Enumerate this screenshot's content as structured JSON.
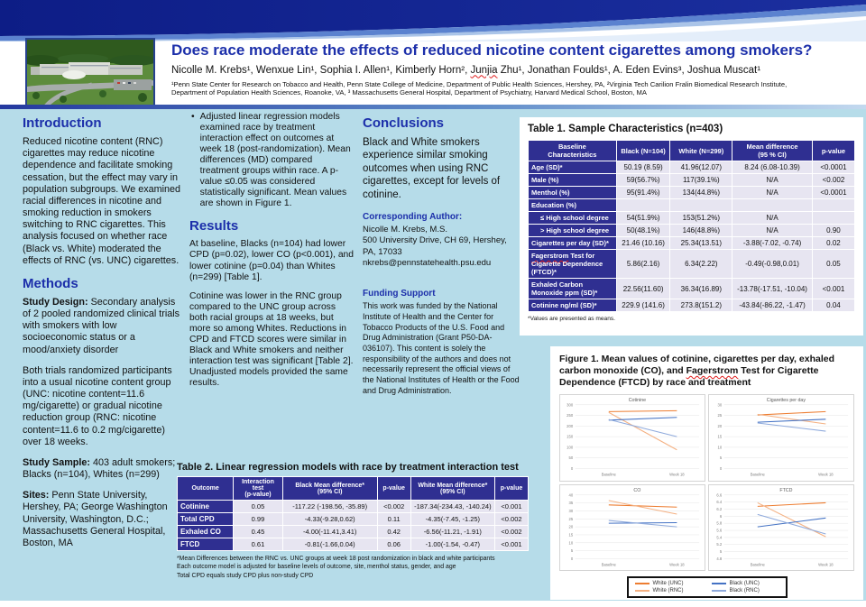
{
  "header": {
    "title": "Does race moderate the effects of reduced nicotine content cigarettes among smokers?",
    "authors_pre": "Nicolle M. Krebs¹, Wenxue Lin¹, Sophia I. Allen¹, Kimberly Horn², ",
    "authors_sq": "Junjia",
    "authors_post": " Zhu¹, Jonathan Foulds¹, A. Eden Evins³, Joshua Muscat¹",
    "affiliation_line1": "¹Penn State Center for Research on Tobacco and Health, Penn State College of Medicine, Department of Public Health Sciences, Hershey, PA, ²Virginia Tech Carilion Fralin Biomedical Research Institute,",
    "affiliation_line2": "Department of Population Health Sciences, Roanoke, VA, ³ Massachusetts General Hospital, Department of Psychiatry, Harvard Medical School, Boston, MA"
  },
  "intro": {
    "heading": "Introduction",
    "body": "Reduced nicotine content (RNC) cigarettes may reduce nicotine dependence and facilitate smoking cessation, but the effect may vary in population subgroups.  We examined racial differences in nicotine and smoking reduction in smokers switching to RNC cigarettes. This analysis focused on whether race (Black vs. White) moderated the effects of RNC (vs. UNC) cigarettes."
  },
  "methods": {
    "heading": "Methods",
    "design_label": "Study Design:",
    "design_text": " Secondary analysis of 2 pooled randomized clinical trials with smokers with low socioeconomic status or a mood/anxiety disorder",
    "randomization_text": "Both trials randomized participants into a usual nicotine content group (UNC: nicotine content=11.6 mg/cigarette) or gradual nicotine reduction group (RNC: nicotine content=11.6 to 0.2 mg/cigarette) over 18 weeks.",
    "sample_label": "Study Sample:",
    "sample_text": " 403 adult smokers; Blacks (n=104), Whites (n=299)",
    "sites_label": "Sites:",
    "sites_text": "  Penn State University, Hershey, PA; George Washington University, Washington, D.C.; Massachusetts General Hospital, Boston, MA"
  },
  "analysis": {
    "bullet_glyph": "•",
    "bullet": "Adjusted linear regression models examined race by treatment interaction effect on outcomes at week 18 (post-randomization). Mean differences (MD) compared treatment groups within race. A p-value ≤0.05 was considered statistically significant.  Mean values are shown in Figure 1."
  },
  "results": {
    "heading": "Results",
    "p1": "At baseline, Blacks (n=104) had lower CPD (p=0.02), lower CO (p<0.001), and lower cotinine (p=0.04) than Whites (n=299) [Table 1].",
    "p2": "Cotinine was lower in the RNC group compared to the UNC group across both racial groups at 18 weeks, but more so among Whites. Reductions in CPD and FTCD scores were similar in Black and White smokers and neither interaction test was significant [Table 2].  Unadjusted models provided the same results."
  },
  "conclusions": {
    "heading": "Conclusions",
    "body": "Black and White smokers experience similar smoking outcomes when using RNC cigarettes, except for levels of cotinine."
  },
  "corresponding": {
    "heading": "Corresponding Author:",
    "lines": [
      "Nicolle M. Krebs, M.S.",
      "500 University Drive, CH 69, Hershey, PA, 17033",
      "nkrebs@pennstatehealth.psu.edu"
    ]
  },
  "funding": {
    "heading": "Funding Support",
    "body": "This work was funded by the National Institute of Health and the Center for Tobacco Products of the U.S. Food and Drug Administration (Grant P50-DA-036107).  This content is solely the responsibility of the authors and does not necessarily represent the official views of the National Institutes of Health or the Food and Drug Administration."
  },
  "table1": {
    "title": "Table 1.  Sample Characteristics (n=403)",
    "headers": [
      "Baseline\nCharacteristics",
      "Black (N=104)",
      "White (N=299)",
      "Mean difference\n(95 % CI)",
      "p-value"
    ],
    "col_widths": [
      "27%",
      "16.5%",
      "19%",
      "24.5%",
      "13%"
    ],
    "rows": [
      {
        "label": "Age (SD)*",
        "cells": [
          "50.19 (8.59)",
          "41.96(12.07)",
          "8.24 (6.08-10.39)",
          "<0.0001"
        ]
      },
      {
        "label": "Male (%)",
        "cells": [
          "59(56.7%)",
          "117(39.1%)",
          "N/A",
          "<0.002"
        ]
      },
      {
        "label": "Menthol (%)",
        "cells": [
          "95(91.4%)",
          "134(44.8%)",
          "N/A",
          "<0.0001"
        ]
      },
      {
        "label": "Education (%)",
        "cells": [
          "",
          "",
          "",
          ""
        ]
      },
      {
        "label": "≤ High school degree",
        "indent": true,
        "cells": [
          "54(51.9%)",
          "153(51.2%)",
          "N/A",
          ""
        ]
      },
      {
        "label": "> High school degree",
        "indent": true,
        "cells": [
          "50(48.1%)",
          "146(48.8%)",
          "N/A",
          "0.90"
        ]
      },
      {
        "label": "Cigarettes per day (SD)*",
        "cells": [
          "21.46 (10.16)",
          "25.34(13.51)",
          "-3.88(-7.02, -0.74)",
          "0.02"
        ]
      },
      {
        "label": "Fagerstrom Test for Cigarette Dependence (FTCD)*",
        "cells": [
          "5.86(2.16)",
          "6.34(2.22)",
          "-0.49(-0.98,0.01)",
          "0.05"
        ]
      },
      {
        "label": "Exhaled Carbon Monoxide ppm (SD)*",
        "cells": [
          "22.56(11.60)",
          "36.34(16.89)",
          "-13.78(-17.51, -10.04)",
          "<0.001"
        ]
      },
      {
        "label": "Cotinine ng/ml (SD)*",
        "cells": [
          "229.9 (141.6)",
          "273.8(151.2)",
          "-43.84(-86.22, -1.47)",
          "0.04"
        ]
      }
    ],
    "footnote": "*Values are presented as means."
  },
  "table2": {
    "title": "Table 2.  Linear regression models with race by treatment interaction test",
    "headers": [
      "Outcome",
      "Interaction\ntest\n(p-value)",
      "Black Mean difference*\n(95% CI)",
      "p-value",
      "White Mean difference*\n(95% CI)",
      "p-value"
    ],
    "col_widths": [
      "16%",
      "14%",
      "27%",
      "9.5%",
      "24%",
      "9.5%"
    ],
    "rows": [
      {
        "label": "Cotinine",
        "cells": [
          "0.05",
          "-117.22 (-198.56, -35.89)",
          "<0.002",
          "-187.34(-234.43, -140.24)",
          "<0.001"
        ]
      },
      {
        "label": "Total CPD",
        "cells": [
          "0.99",
          "-4.33(-9.28,0.62)",
          "0.11",
          "-4.35(-7.45, -1.25)",
          "<0.002"
        ]
      },
      {
        "label": "Exhaled CO",
        "cells": [
          "0.45",
          "-4.00(-11.41,3.41)",
          "0.42",
          "-6.56(-11.21, -1.91)",
          "<0.002"
        ]
      },
      {
        "label": "FTCD",
        "cells": [
          "0.61",
          "-0.81(-1.66,0.04)",
          "0.06",
          "-1.00(-1.54, -0.47)",
          "<0.001"
        ]
      }
    ],
    "footnotes": [
      "*Mean Differences between the RNC vs. UNC groups at week 18 post randomization in black and white participants",
      "Each outcome model is adjusted for baseline levels of outcome, site, menthol status, gender, and age",
      "Total CPD equals study CPD plus non-study CPD"
    ]
  },
  "figure1": {
    "caption_pre": "Figure 1.  Mean values of cotinine, cigarettes per day, exhaled carbon monoxide (CO), and ",
    "caption_sq": "Fagerstrom",
    "caption_post": " Test for Cigarette Dependence (FTCD) by race and treatment",
    "legend": [
      {
        "label": "White (UNC)",
        "color": "#ed7d31"
      },
      {
        "label": "Black (UNC)",
        "color": "#4472c4"
      },
      {
        "label": "White (RNC)",
        "color": "#f4b183"
      },
      {
        "label": "Black (RNC)",
        "color": "#8faadc"
      }
    ]
  },
  "chart_data": [
    {
      "type": "line",
      "title": "Cotinine",
      "ymin": 0,
      "ymax": 300,
      "yticks": [
        "0",
        "50",
        "100",
        "150",
        "200",
        "250",
        "300"
      ],
      "x_labels": [
        "Baseline",
        "Week 18"
      ],
      "series": [
        {
          "name": "White (UNC)",
          "color": "#ed7d31",
          "values": [
            268,
            272
          ]
        },
        {
          "name": "White (RNC)",
          "color": "#f4b183",
          "values": [
            264,
            88
          ]
        },
        {
          "name": "Black (UNC)",
          "color": "#4472c4",
          "values": [
            228,
            241
          ]
        },
        {
          "name": "Black (RNC)",
          "color": "#8faadc",
          "values": [
            231,
            150
          ]
        }
      ]
    },
    {
      "type": "line",
      "title": "Cigarettes per day",
      "ymin": 0,
      "ymax": 30,
      "yticks": [
        "0",
        "5",
        "10",
        "15",
        "20",
        "25",
        "30"
      ],
      "x_labels": [
        "Baseline",
        "Week 18"
      ],
      "series": [
        {
          "name": "White (UNC)",
          "color": "#ed7d31",
          "values": [
            25.2,
            26.8
          ]
        },
        {
          "name": "White (RNC)",
          "color": "#f4b183",
          "values": [
            25.5,
            21
          ]
        },
        {
          "name": "Black (UNC)",
          "color": "#4472c4",
          "values": [
            21.8,
            23.2
          ]
        },
        {
          "name": "Black (RNC)",
          "color": "#8faadc",
          "values": [
            21.4,
            17.6
          ]
        }
      ]
    },
    {
      "type": "line",
      "title": "CO",
      "ymin": 0,
      "ymax": 40,
      "yticks": [
        "0",
        "5",
        "10",
        "15",
        "20",
        "25",
        "30",
        "35",
        "40"
      ],
      "x_labels": [
        "Baseline",
        "Week 18"
      ],
      "series": [
        {
          "name": "White (UNC)",
          "color": "#ed7d31",
          "values": [
            33.8,
            32.4
          ]
        },
        {
          "name": "White (RNC)",
          "color": "#f4b183",
          "values": [
            36.5,
            28
          ]
        },
        {
          "name": "Black (UNC)",
          "color": "#4472c4",
          "values": [
            22.3,
            22.6
          ]
        },
        {
          "name": "Black (RNC)",
          "color": "#8faadc",
          "values": [
            24,
            20
          ]
        }
      ]
    },
    {
      "type": "line",
      "title": "FTCD",
      "ymin": 4.8,
      "ymax": 6.6,
      "yticks": [
        "4.8",
        "5",
        "5.2",
        "5.4",
        "5.6",
        "5.8",
        "6",
        "6.2",
        "6.4",
        "6.6"
      ],
      "x_labels": [
        "Baseline",
        "Week 18"
      ],
      "series": [
        {
          "name": "White (UNC)",
          "color": "#ed7d31",
          "values": [
            6.28,
            6.38
          ]
        },
        {
          "name": "White (RNC)",
          "color": "#f4b183",
          "values": [
            6.38,
            5.42
          ]
        },
        {
          "name": "Black (UNC)",
          "color": "#4472c4",
          "values": [
            5.7,
            5.95
          ]
        },
        {
          "name": "Black (RNC)",
          "color": "#8faadc",
          "values": [
            6.05,
            5.5
          ]
        }
      ]
    }
  ]
}
